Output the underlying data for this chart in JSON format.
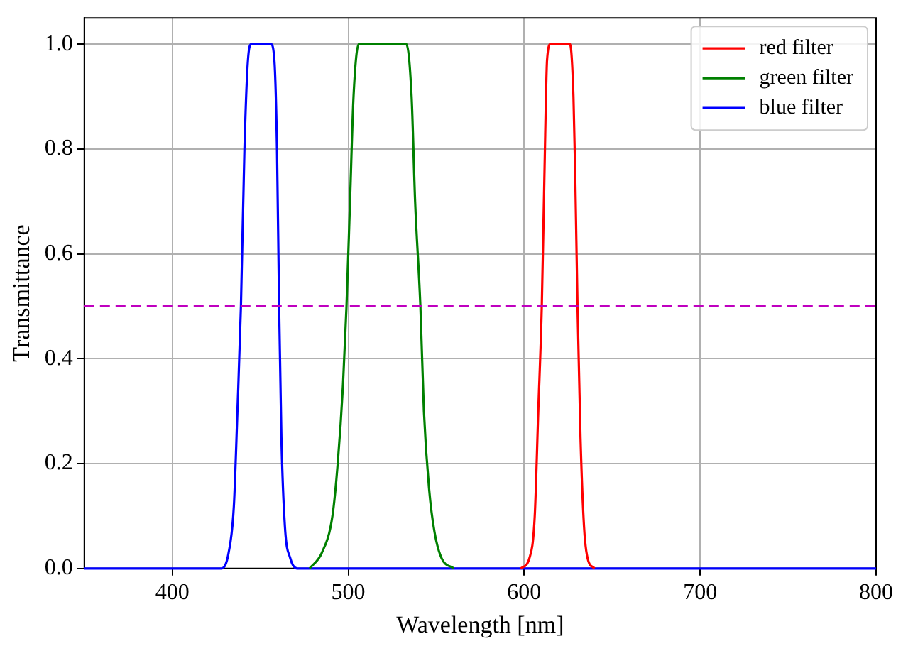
{
  "chart_data": {
    "type": "line",
    "xlabel": "Wavelength [nm]",
    "ylabel": "Transmittance",
    "xlim": [
      350,
      800
    ],
    "xticks": [
      400,
      500,
      600,
      700,
      800
    ],
    "ylim": [
      0,
      1.05
    ],
    "yticks": [
      {
        "value": 0,
        "label": "0.0"
      },
      {
        "value": 0.2,
        "label": "0.2"
      },
      {
        "value": 0.4,
        "label": "0.4"
      },
      {
        "value": 0.6,
        "label": "0.6"
      },
      {
        "value": 0.8,
        "label": "0.8"
      },
      {
        "value": 1,
        "label": "1.0"
      }
    ],
    "grid": true,
    "legend": "top right",
    "marker": "none",
    "line_style": "solid",
    "ref_lines": [
      {
        "axis": "y",
        "value": 0.5,
        "color": "#bf00bf",
        "line_style": "dashed"
      }
    ],
    "series": [
      {
        "name": "red filter",
        "color": "#ff0000",
        "x": [
          598,
          603,
          606,
          608,
          610,
          611.5,
          613,
          615,
          626,
          628,
          629,
          630.3,
          632,
          634,
          636,
          640
        ],
        "values": [
          0,
          0.02,
          0.1,
          0.3,
          0.5,
          0.75,
          0.97,
          1,
          1,
          0.9,
          0.75,
          0.5,
          0.25,
          0.08,
          0.02,
          0
        ]
      },
      {
        "name": "green filter",
        "color": "#008000",
        "x": [
          478,
          485,
          491,
          494,
          497,
          499,
          501,
          503,
          506,
          533,
          536,
          538,
          541,
          543,
          546,
          549,
          553,
          560
        ],
        "values": [
          0,
          0.03,
          0.1,
          0.2,
          0.35,
          0.5,
          0.7,
          0.9,
          1,
          1,
          0.9,
          0.7,
          0.5,
          0.3,
          0.15,
          0.07,
          0.02,
          0
        ]
      },
      {
        "name": "blue filter",
        "color": "#0000ff",
        "x": [
          350,
          428,
          432,
          435,
          437,
          439,
          441,
          443,
          445,
          456,
          458,
          459.5,
          460.7,
          462,
          464,
          467,
          471,
          800
        ],
        "values": [
          0,
          0,
          0.03,
          0.12,
          0.3,
          0.5,
          0.8,
          0.97,
          1,
          1,
          0.97,
          0.8,
          0.5,
          0.25,
          0.08,
          0.02,
          0,
          0
        ]
      }
    ]
  }
}
